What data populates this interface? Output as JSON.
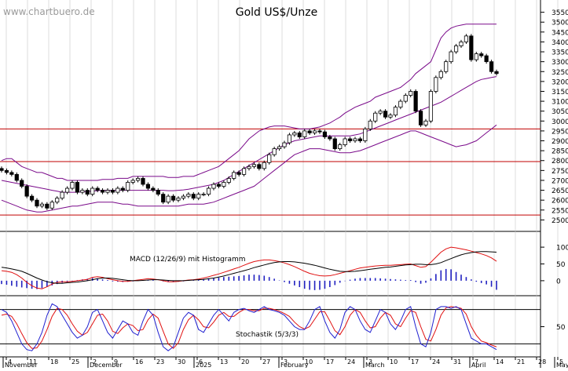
{
  "watermark": "www.chartbuero.de",
  "chart_data": [
    {
      "type": "candlestick",
      "title": "Gold US$/Unze",
      "ylim": [
        2450,
        3600
      ],
      "y_ticks": [
        2500,
        2550,
        2600,
        2650,
        2700,
        2750,
        2800,
        2850,
        2900,
        2950,
        3000,
        3050,
        3100,
        3150,
        3200,
        3250,
        3300,
        3350,
        3400,
        3450,
        3500,
        3550
      ],
      "horizontal_lines": [
        2525,
        2795,
        2960
      ],
      "series": [
        {
          "name": "Close",
          "values": [
            2750,
            2740,
            2730,
            2700,
            2670,
            2620,
            2600,
            2570,
            2580,
            2560,
            2590,
            2610,
            2640,
            2660,
            2690,
            2640,
            2650,
            2630,
            2660,
            2650,
            2640,
            2650,
            2640,
            2660,
            2650,
            2690,
            2700,
            2710,
            2680,
            2660,
            2650,
            2630,
            2590,
            2620,
            2600,
            2610,
            2620,
            2630,
            2610,
            2630,
            2630,
            2660,
            2680,
            2670,
            2690,
            2710,
            2740,
            2730,
            2760,
            2770,
            2780,
            2760,
            2790,
            2830,
            2860,
            2870,
            2890,
            2930,
            2940,
            2920,
            2950,
            2940,
            2950,
            2945,
            2920,
            2910,
            2860,
            2880,
            2910,
            2900,
            2910,
            2900,
            2960,
            3000,
            3040,
            3050,
            3020,
            3030,
            3070,
            3100,
            3130,
            3150,
            3050,
            2980,
            3000,
            3150,
            3220,
            3250,
            3300,
            3350,
            3380,
            3400,
            3430,
            3310,
            3340,
            3330,
            3300,
            3250,
            3240
          ]
        },
        {
          "name": "Upper Bollinger",
          "values": [
            2800,
            2810,
            2810,
            2790,
            2770,
            2760,
            2750,
            2740,
            2740,
            2730,
            2720,
            2710,
            2710,
            2700,
            2700,
            2700,
            2700,
            2700,
            2700,
            2700,
            2705,
            2705,
            2705,
            2710,
            2710,
            2710,
            2720,
            2720,
            2720,
            2720,
            2720,
            2720,
            2720,
            2715,
            2715,
            2715,
            2720,
            2720,
            2720,
            2730,
            2740,
            2750,
            2760,
            2770,
            2790,
            2810,
            2830,
            2850,
            2880,
            2910,
            2930,
            2950,
            2960,
            2970,
            2975,
            2975,
            2975,
            2970,
            2965,
            2960,
            2960,
            2960,
            2965,
            2970,
            2980,
            2990,
            3005,
            3020,
            3040,
            3055,
            3070,
            3080,
            3090,
            3100,
            3120,
            3130,
            3140,
            3150,
            3160,
            3170,
            3190,
            3210,
            3240,
            3260,
            3280,
            3300,
            3360,
            3420,
            3450,
            3470,
            3480,
            3485,
            3490,
            3490,
            3490,
            3490,
            3490,
            3490,
            3490
          ]
        },
        {
          "name": "Middle Band",
          "values": [
            2700,
            2695,
            2690,
            2685,
            2680,
            2675,
            2670,
            2665,
            2660,
            2655,
            2650,
            2645,
            2640,
            2640,
            2640,
            2640,
            2642,
            2644,
            2646,
            2648,
            2650,
            2650,
            2650,
            2650,
            2650,
            2650,
            2650,
            2650,
            2650,
            2650,
            2650,
            2650,
            2650,
            2648,
            2648,
            2650,
            2652,
            2655,
            2660,
            2665,
            2670,
            2675,
            2680,
            2690,
            2700,
            2715,
            2730,
            2745,
            2760,
            2775,
            2790,
            2805,
            2820,
            2835,
            2850,
            2865,
            2880,
            2890,
            2900,
            2905,
            2910,
            2915,
            2920,
            2925,
            2925,
            2925,
            2925,
            2925,
            2925,
            2925,
            2930,
            2935,
            2945,
            2955,
            2965,
            2975,
            2985,
            2995,
            3005,
            3015,
            3025,
            3035,
            3045,
            3055,
            3065,
            3075,
            3085,
            3095,
            3110,
            3125,
            3140,
            3155,
            3170,
            3185,
            3200,
            3210,
            3215,
            3220,
            3225
          ]
        },
        {
          "name": "Lower Bollinger",
          "values": [
            2600,
            2590,
            2580,
            2570,
            2560,
            2550,
            2545,
            2540,
            2540,
            2545,
            2550,
            2555,
            2560,
            2565,
            2570,
            2570,
            2575,
            2580,
            2585,
            2590,
            2590,
            2590,
            2590,
            2585,
            2580,
            2580,
            2575,
            2570,
            2570,
            2570,
            2570,
            2570,
            2570,
            2570,
            2570,
            2570,
            2575,
            2580,
            2580,
            2580,
            2580,
            2585,
            2590,
            2600,
            2610,
            2620,
            2630,
            2640,
            2650,
            2660,
            2670,
            2690,
            2710,
            2730,
            2750,
            2770,
            2790,
            2810,
            2830,
            2840,
            2850,
            2860,
            2860,
            2860,
            2855,
            2850,
            2845,
            2840,
            2840,
            2840,
            2845,
            2850,
            2860,
            2870,
            2880,
            2890,
            2900,
            2910,
            2920,
            2930,
            2940,
            2950,
            2950,
            2940,
            2930,
            2920,
            2910,
            2900,
            2890,
            2880,
            2870,
            2875,
            2880,
            2890,
            2900,
            2920,
            2940,
            2960,
            2980
          ]
        }
      ]
    },
    {
      "type": "line",
      "title": "MACD (12/26/9) mit Histogramm",
      "ylim": [
        -40,
        140
      ],
      "y_ticks": [
        0,
        50,
        100
      ],
      "series": [
        {
          "name": "MACD",
          "values": [
            30,
            28,
            25,
            18,
            8,
            -5,
            -15,
            -22,
            -24,
            -18,
            -10,
            -5,
            -3,
            -3,
            -2,
            0,
            2,
            4,
            10,
            12,
            10,
            6,
            3,
            0,
            -2,
            -2,
            0,
            2,
            4,
            6,
            5,
            3,
            0,
            -3,
            -3,
            -2,
            0,
            2,
            3,
            5,
            8,
            12,
            16,
            20,
            25,
            30,
            35,
            40,
            46,
            52,
            57,
            60,
            62,
            62,
            60,
            57,
            53,
            48,
            42,
            35,
            28,
            22,
            18,
            15,
            14,
            15,
            18,
            22,
            26,
            30,
            34,
            38,
            40,
            42,
            44,
            45,
            46,
            46,
            47,
            48,
            49,
            50,
            45,
            40,
            42,
            55,
            70,
            85,
            95,
            100,
            98,
            95,
            92,
            88,
            84,
            80,
            75,
            68,
            58
          ]
        },
        {
          "name": "Signal",
          "values": [
            40,
            38,
            35,
            32,
            28,
            22,
            15,
            8,
            2,
            -3,
            -6,
            -8,
            -8,
            -6,
            -5,
            -4,
            -2,
            0,
            3,
            6,
            8,
            8,
            7,
            5,
            3,
            1,
            0,
            0,
            1,
            2,
            3,
            3,
            2,
            1,
            0,
            0,
            0,
            1,
            2,
            3,
            4,
            6,
            8,
            11,
            14,
            18,
            22,
            26,
            30,
            34,
            39,
            43,
            47,
            51,
            54,
            56,
            57,
            57,
            56,
            54,
            52,
            49,
            46,
            42,
            38,
            34,
            31,
            28,
            27,
            27,
            28,
            30,
            32,
            34,
            36,
            38,
            40,
            41,
            43,
            45,
            47,
            48,
            49,
            49,
            48,
            48,
            50,
            54,
            60,
            66,
            72,
            77,
            81,
            84,
            86,
            87,
            87,
            86,
            85
          ]
        }
      ],
      "histogram": [
        -10,
        -12,
        -15,
        -18,
        -20,
        -22,
        -24,
        -25,
        -22,
        -18,
        -14,
        -10,
        -6,
        -4,
        -2,
        2,
        4,
        6,
        8,
        6,
        4,
        2,
        -2,
        -3,
        -4,
        -3,
        -2,
        1,
        2,
        3,
        2,
        0,
        -2,
        -3,
        -4,
        -3,
        -2,
        0,
        2,
        4,
        5,
        7,
        8,
        9,
        11,
        12,
        13,
        14,
        16,
        18,
        18,
        17,
        15,
        11,
        6,
        1,
        -4,
        -9,
        -14,
        -19,
        -24,
        -27,
        -28,
        -27,
        -24,
        -19,
        -13,
        -6,
        -1,
        3,
        6,
        8,
        8,
        8,
        8,
        7,
        6,
        5,
        4,
        3,
        2,
        2,
        -4,
        -9,
        -6,
        7,
        20,
        31,
        35,
        34,
        26,
        18,
        11,
        4,
        -3,
        -7,
        -11,
        -18,
        -27
      ]
    },
    {
      "type": "line",
      "title": "Stochastik (5/3/3)",
      "ylim": [
        0,
        100
      ],
      "y_ticks": [
        50
      ],
      "horizontal_lines": [
        80,
        20
      ],
      "series": [
        {
          "name": "%K",
          "values": [
            80,
            75,
            60,
            40,
            20,
            10,
            8,
            20,
            40,
            70,
            90,
            85,
            70,
            55,
            40,
            30,
            35,
            50,
            75,
            80,
            60,
            40,
            30,
            45,
            60,
            55,
            40,
            35,
            60,
            80,
            70,
            40,
            15,
            8,
            15,
            40,
            65,
            75,
            70,
            45,
            40,
            55,
            70,
            80,
            70,
            60,
            75,
            80,
            82,
            78,
            75,
            80,
            85,
            80,
            78,
            75,
            70,
            60,
            50,
            45,
            45,
            60,
            80,
            85,
            60,
            40,
            30,
            45,
            75,
            85,
            80,
            60,
            45,
            40,
            60,
            80,
            75,
            55,
            45,
            60,
            80,
            85,
            50,
            20,
            15,
            40,
            80,
            85,
            85,
            82,
            85,
            80,
            55,
            30,
            25,
            20,
            20,
            15,
            10
          ]
        },
        {
          "name": "%D",
          "values": [
            70,
            72,
            68,
            55,
            38,
            22,
            12,
            13,
            25,
            45,
            68,
            82,
            80,
            70,
            55,
            42,
            35,
            40,
            55,
            70,
            72,
            60,
            42,
            38,
            48,
            55,
            52,
            43,
            45,
            62,
            72,
            65,
            42,
            20,
            12,
            22,
            45,
            62,
            70,
            62,
            50,
            48,
            58,
            70,
            75,
            68,
            68,
            75,
            80,
            80,
            78,
            78,
            82,
            82,
            80,
            77,
            73,
            68,
            58,
            50,
            46,
            50,
            63,
            76,
            76,
            60,
            43,
            36,
            50,
            70,
            80,
            75,
            60,
            48,
            50,
            65,
            75,
            70,
            55,
            50,
            65,
            78,
            75,
            50,
            28,
            25,
            45,
            70,
            83,
            85,
            84,
            82,
            72,
            50,
            35,
            25,
            22,
            18,
            15
          ]
        }
      ]
    }
  ],
  "x_axis": {
    "date_ticks": [
      "4",
      "11",
      "18",
      "25",
      "2",
      "9",
      "16",
      "23",
      "30",
      "6",
      "13",
      "20",
      "27",
      "3",
      "10",
      "17",
      "24",
      "3",
      "10",
      "17",
      "24",
      "31",
      "7",
      "14",
      "21",
      "28",
      "5",
      "12"
    ],
    "month_labels": [
      "November",
      "December",
      "2025",
      "February",
      "March",
      "April",
      "May"
    ]
  }
}
